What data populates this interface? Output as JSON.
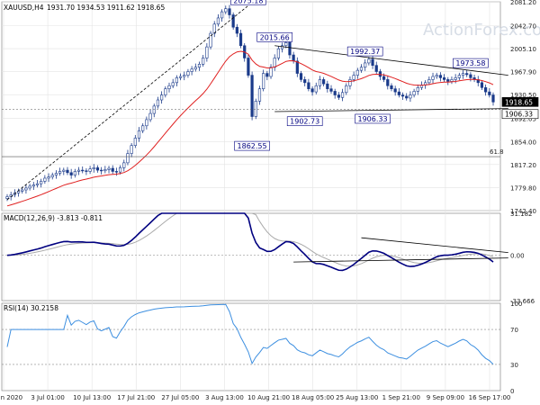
{
  "header": {
    "symbol": "XAUUSD,H4",
    "ohlc": "1931.70 1934.53 1911.62 1918.65"
  },
  "watermark": "ActionForex.com",
  "colors": {
    "candle": "#1a3a8a",
    "ma": "#e02020",
    "macd_line": "#000080",
    "macd_signal": "#aaaaaa",
    "rsi": "#3d8fe0",
    "trendline": "#000000",
    "badge": "#000080"
  },
  "chart_data": [
    {
      "type": "candlestick",
      "title": "XAUUSD,H4",
      "ylim": [
        1742.4,
        2081.2
      ],
      "y_ticks": [
        "2081.20",
        "2042.70",
        "2005.10",
        "1967.90",
        "1930.50",
        "1892.05",
        "1854.00",
        "1817.20",
        "1779.80",
        "1742.40"
      ],
      "x_ticks": [
        "25 Jun 2020",
        "3 Jul 01:00",
        "10 Jul 13:00",
        "17 Jul 21:00",
        "27 Jul 05:00",
        "3 Aug 13:00",
        "10 Aug 21:00",
        "18 Aug 05:00",
        "25 Aug 13:00",
        "1 Sep 21:00",
        "9 Sep 09:00",
        "16 Sep 17:00"
      ],
      "close_path": [
        1765,
        1768,
        1771,
        1774,
        1776,
        1779,
        1782,
        1784,
        1786,
        1790,
        1795,
        1797,
        1800,
        1803,
        1806,
        1808,
        1804,
        1800,
        1806,
        1808,
        1807,
        1806,
        1810,
        1812,
        1808,
        1807,
        1809,
        1811,
        1806,
        1805,
        1812,
        1820,
        1835,
        1848,
        1860,
        1872,
        1880,
        1890,
        1900,
        1912,
        1922,
        1930,
        1940,
        1945,
        1950,
        1958,
        1960,
        1962,
        1968,
        1972,
        1975,
        1980,
        1990,
        2008,
        2030,
        2045,
        2055,
        2065,
        2070,
        2060,
        2040,
        2030,
        2010,
        1990,
        1962,
        1895,
        1920,
        1940,
        1965,
        1960,
        1975,
        1990,
        2005,
        2010,
        2015,
        1995,
        1985,
        1965,
        1955,
        1950,
        1940,
        1935,
        1945,
        1955,
        1948,
        1940,
        1936,
        1930,
        1926,
        1934,
        1945,
        1955,
        1962,
        1970,
        1975,
        1982,
        1988,
        1978,
        1968,
        1960,
        1955,
        1945,
        1940,
        1935,
        1930,
        1928,
        1925,
        1930,
        1936,
        1942,
        1946,
        1950,
        1955,
        1960,
        1962,
        1958,
        1955,
        1952,
        1955,
        1958,
        1962,
        1965,
        1963,
        1958,
        1955,
        1950,
        1942,
        1935,
        1930,
        1918.65
      ],
      "ma_period": 55,
      "price_labels": [
        "2075.18",
        "2015.66",
        "1992.37",
        "1973.58",
        "1862.55",
        "1902.73",
        "1906.33"
      ],
      "current_price": "1918.65",
      "support_level": "1906.33",
      "fib_level": 1830,
      "fib_label": "61.8",
      "trendlines": [
        {
          "from": [
            0,
            1760
          ],
          "to": [
            64,
            2075
          ]
        },
        {
          "from": [
            71,
            2010
          ],
          "to": [
            133,
            1962
          ]
        },
        {
          "from": [
            71,
            1903
          ],
          "to": [
            133,
            1908
          ]
        }
      ]
    },
    {
      "type": "line",
      "title": "MACD(12,26,9) -3.813 -0.811",
      "ylim": [
        -33.666,
        31.182
      ],
      "y_ticks": [
        "31.182",
        "0.00",
        "-33.666"
      ],
      "trendlines": [
        {
          "from": [
            94,
            13
          ],
          "to": [
            133,
            2
          ]
        },
        {
          "from": [
            76,
            -5
          ],
          "to": [
            133,
            -2
          ]
        }
      ]
    },
    {
      "type": "line",
      "title": "RSI(14) 30.2158",
      "ylim": [
        0,
        100
      ],
      "y_ticks": [
        "100",
        "70",
        "30",
        "0"
      ]
    }
  ]
}
